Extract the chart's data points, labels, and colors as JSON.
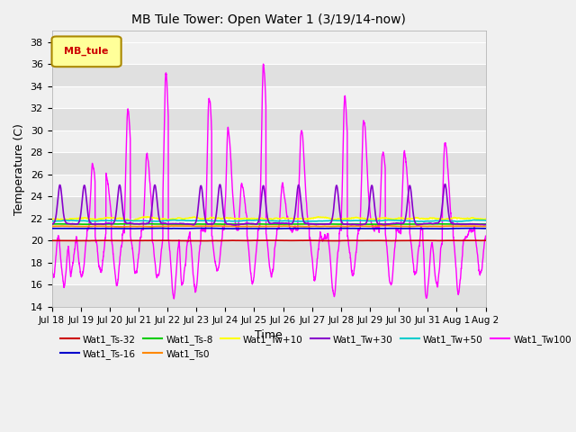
{
  "title": "MB Tule Tower: Open Water 1 (3/19/14-now)",
  "xlabel": "Time",
  "ylabel": "Temperature (C)",
  "ylim": [
    14,
    39
  ],
  "yticks": [
    14,
    16,
    18,
    20,
    22,
    24,
    26,
    28,
    30,
    32,
    34,
    36,
    38
  ],
  "background_color": "#f0f0f0",
  "plot_bg_light": "#f0f0f0",
  "plot_bg_dark": "#e0e0e0",
  "legend_label": "MB_tule",
  "series_colors": {
    "Wat1_Ts-32": "#cc0000",
    "Wat1_Ts-16": "#0000cc",
    "Wat1_Ts-8": "#00cc00",
    "Wat1_Ts0": "#ff8800",
    "Wat1_Tw+10": "#ffff00",
    "Wat1_Tw+30": "#8800cc",
    "Wat1_Tw+50": "#00cccc",
    "Wat1_Tw100": "#ff00ff"
  },
  "n_days": 16,
  "tick_labels": [
    "Jul 18",
    "Jul 19",
    "Jul 20",
    "Jul 21",
    "Jul 22",
    "Jul 23",
    "Jul 24",
    "Jul 25",
    "Jul 26",
    "Jul 27",
    "Jul 28",
    "Jul 29",
    "Jul 30",
    "Jul 31",
    "Aug 1",
    "Aug 2"
  ],
  "figsize": [
    6.4,
    4.8
  ],
  "dpi": 100
}
